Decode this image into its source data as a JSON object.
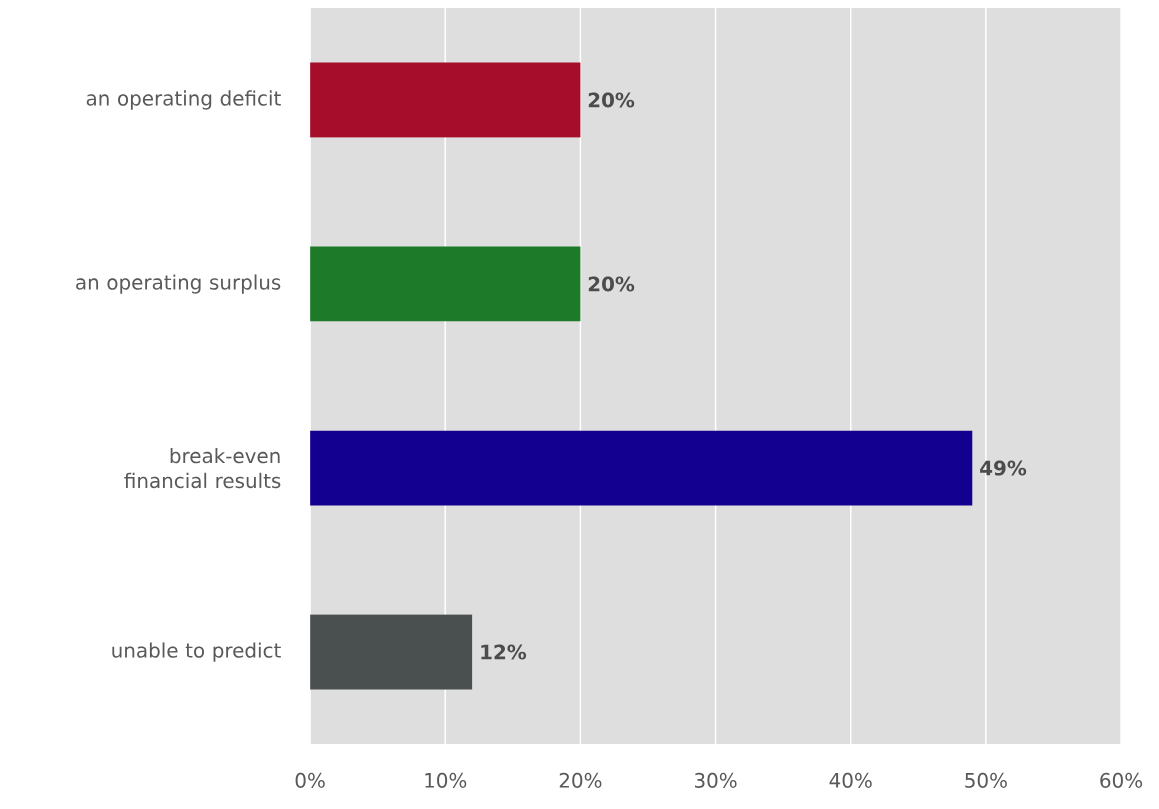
{
  "chart_data": {
    "type": "bar",
    "orientation": "horizontal",
    "categories": [
      "an operating deficit",
      "an operating surplus",
      "break-even financial results",
      "unable to predict"
    ],
    "values": [
      20,
      20,
      49,
      12
    ],
    "value_labels": [
      "20%",
      "20%",
      "49%",
      "12%"
    ],
    "colors": [
      "#a50d2b",
      "#1d7a28",
      "#140090",
      "#4a4f50"
    ],
    "xlim": [
      0,
      60
    ],
    "xticks": [
      {
        "value": 0,
        "label": "0%"
      },
      {
        "value": 10,
        "label": "10%"
      },
      {
        "value": 20,
        "label": "20%"
      },
      {
        "value": 30,
        "label": "30%"
      },
      {
        "value": 40,
        "label": "40%"
      },
      {
        "value": 50,
        "label": "50%"
      },
      {
        "value": 60,
        "label": "60%"
      }
    ],
    "grid": "x"
  }
}
